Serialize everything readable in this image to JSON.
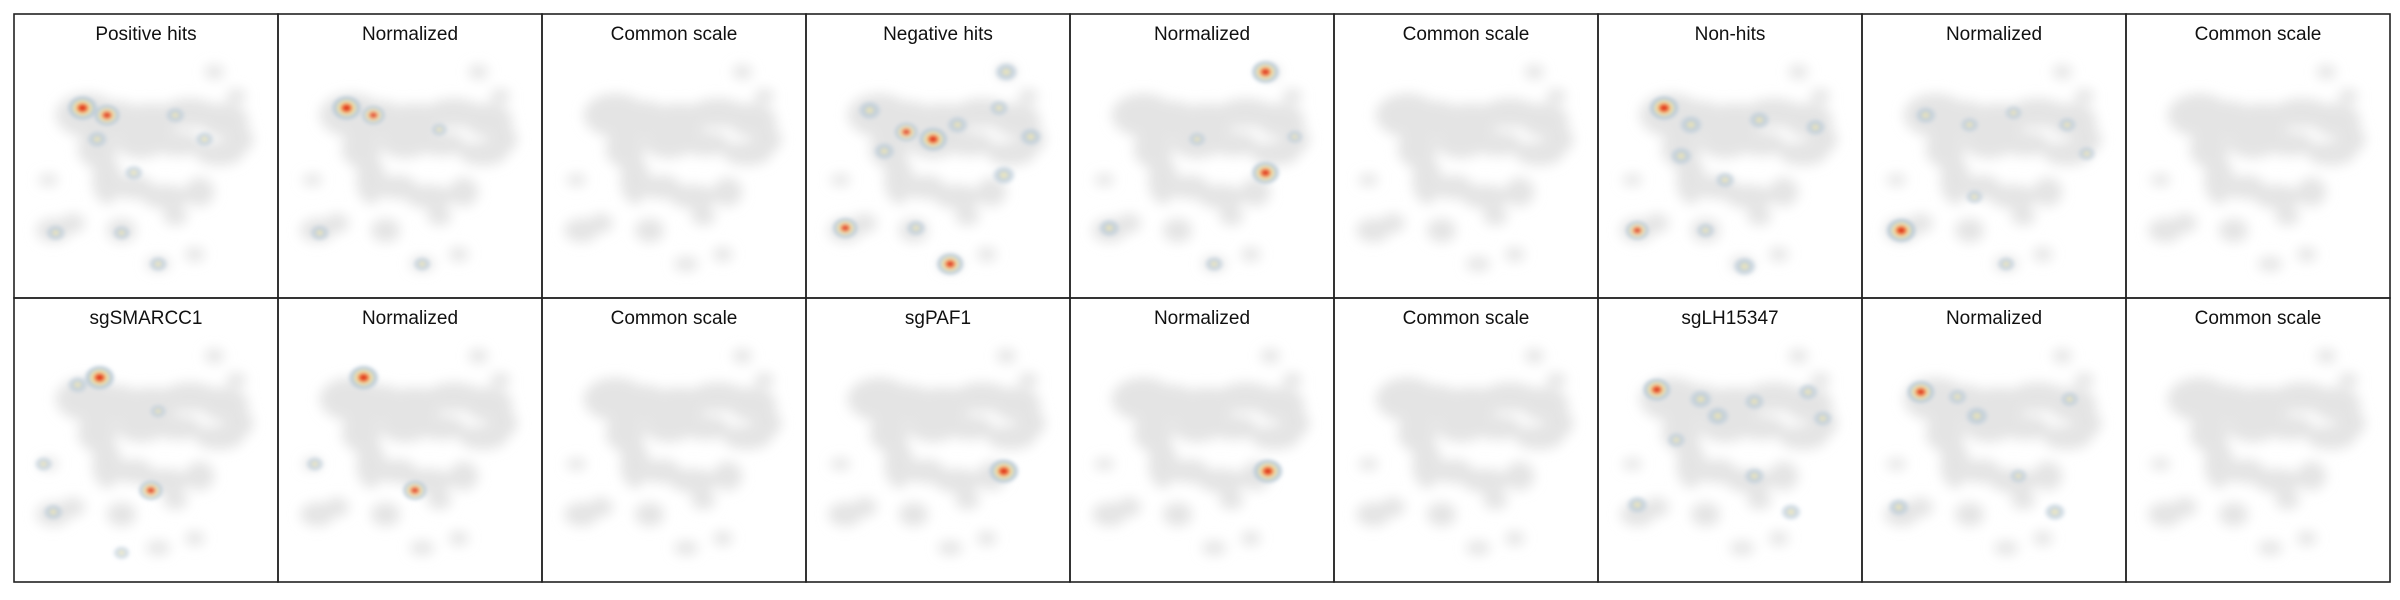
{
  "chart_data": {
    "type": "heatmap",
    "layout": {
      "rows": 2,
      "columns": 9
    },
    "colors": {
      "background_map": "#e4e4e4",
      "low": "#b9cad8",
      "mid": "#f2e6a8",
      "high": "#d41a14",
      "panel_border": "#222222"
    },
    "panels": [
      {
        "title": "Positive hits",
        "hotspots": [
          {
            "x": 0.24,
            "y": 0.25,
            "w": 1.0
          },
          {
            "x": 0.34,
            "y": 0.28,
            "w": 0.8
          },
          {
            "x": 0.3,
            "y": 0.38,
            "w": 0.45
          },
          {
            "x": 0.62,
            "y": 0.28,
            "w": 0.4
          },
          {
            "x": 0.74,
            "y": 0.38,
            "w": 0.35
          },
          {
            "x": 0.45,
            "y": 0.52,
            "w": 0.35
          },
          {
            "x": 0.13,
            "y": 0.77,
            "w": 0.4
          },
          {
            "x": 0.4,
            "y": 0.77,
            "w": 0.3
          },
          {
            "x": 0.55,
            "y": 0.9,
            "w": 0.35
          }
        ]
      },
      {
        "title": "Normalized",
        "hotspots": [
          {
            "x": 0.24,
            "y": 0.25,
            "w": 1.0
          },
          {
            "x": 0.35,
            "y": 0.28,
            "w": 0.65
          },
          {
            "x": 0.62,
            "y": 0.34,
            "w": 0.25
          },
          {
            "x": 0.13,
            "y": 0.77,
            "w": 0.4
          },
          {
            "x": 0.55,
            "y": 0.9,
            "w": 0.3
          }
        ]
      },
      {
        "title": "Common scale",
        "hotspots": []
      },
      {
        "title": "Negative hits",
        "hotspots": [
          {
            "x": 0.22,
            "y": 0.26,
            "w": 0.6
          },
          {
            "x": 0.48,
            "y": 0.38,
            "w": 0.95
          },
          {
            "x": 0.37,
            "y": 0.35,
            "w": 0.65
          },
          {
            "x": 0.58,
            "y": 0.32,
            "w": 0.5
          },
          {
            "x": 0.75,
            "y": 0.25,
            "w": 0.4
          },
          {
            "x": 0.78,
            "y": 0.1,
            "w": 0.6
          },
          {
            "x": 0.88,
            "y": 0.37,
            "w": 0.55
          },
          {
            "x": 0.77,
            "y": 0.53,
            "w": 0.6
          },
          {
            "x": 0.12,
            "y": 0.75,
            "w": 0.75
          },
          {
            "x": 0.41,
            "y": 0.75,
            "w": 0.4
          },
          {
            "x": 0.55,
            "y": 0.9,
            "w": 0.85
          },
          {
            "x": 0.28,
            "y": 0.43,
            "w": 0.5
          }
        ]
      },
      {
        "title": "Normalized",
        "hotspots": [
          {
            "x": 0.76,
            "y": 0.1,
            "w": 0.9
          },
          {
            "x": 0.76,
            "y": 0.52,
            "w": 0.9
          },
          {
            "x": 0.12,
            "y": 0.75,
            "w": 0.5
          },
          {
            "x": 0.48,
            "y": 0.38,
            "w": 0.3
          },
          {
            "x": 0.88,
            "y": 0.37,
            "w": 0.25
          },
          {
            "x": 0.55,
            "y": 0.9,
            "w": 0.35
          }
        ]
      },
      {
        "title": "Common scale",
        "hotspots": []
      },
      {
        "title": "Non-hits",
        "hotspots": [
          {
            "x": 0.23,
            "y": 0.25,
            "w": 1.0
          },
          {
            "x": 0.34,
            "y": 0.32,
            "w": 0.6
          },
          {
            "x": 0.3,
            "y": 0.45,
            "w": 0.55
          },
          {
            "x": 0.62,
            "y": 0.3,
            "w": 0.5
          },
          {
            "x": 0.85,
            "y": 0.33,
            "w": 0.45
          },
          {
            "x": 0.48,
            "y": 0.55,
            "w": 0.4
          },
          {
            "x": 0.12,
            "y": 0.76,
            "w": 0.65
          },
          {
            "x": 0.56,
            "y": 0.91,
            "w": 0.6
          },
          {
            "x": 0.4,
            "y": 0.76,
            "w": 0.35
          }
        ]
      },
      {
        "title": "Normalized",
        "hotspots": [
          {
            "x": 0.22,
            "y": 0.28,
            "w": 0.5
          },
          {
            "x": 0.4,
            "y": 0.32,
            "w": 0.35
          },
          {
            "x": 0.58,
            "y": 0.27,
            "w": 0.3
          },
          {
            "x": 0.8,
            "y": 0.32,
            "w": 0.35
          },
          {
            "x": 0.12,
            "y": 0.76,
            "w": 1.0
          },
          {
            "x": 0.42,
            "y": 0.62,
            "w": 0.3
          },
          {
            "x": 0.55,
            "y": 0.9,
            "w": 0.3
          },
          {
            "x": 0.88,
            "y": 0.44,
            "w": 0.3
          }
        ]
      },
      {
        "title": "Common scale",
        "hotspots": []
      },
      {
        "title": "sgSMARCC1",
        "hotspots": [
          {
            "x": 0.31,
            "y": 0.19,
            "w": 1.0
          },
          {
            "x": 0.22,
            "y": 0.22,
            "w": 0.45
          },
          {
            "x": 0.52,
            "y": 0.66,
            "w": 0.7
          },
          {
            "x": 0.12,
            "y": 0.75,
            "w": 0.4
          },
          {
            "x": 0.08,
            "y": 0.55,
            "w": 0.3
          },
          {
            "x": 0.4,
            "y": 0.92,
            "w": 0.25
          },
          {
            "x": 0.55,
            "y": 0.33,
            "w": 0.25
          }
        ]
      },
      {
        "title": "Normalized",
        "hotspots": [
          {
            "x": 0.31,
            "y": 0.19,
            "w": 1.0
          },
          {
            "x": 0.52,
            "y": 0.66,
            "w": 0.7
          },
          {
            "x": 0.11,
            "y": 0.55,
            "w": 0.3
          }
        ]
      },
      {
        "title": "Common scale",
        "hotspots": []
      },
      {
        "title": "sgPAF1",
        "hotspots": [
          {
            "x": 0.77,
            "y": 0.58,
            "w": 1.0
          }
        ]
      },
      {
        "title": "Normalized",
        "hotspots": [
          {
            "x": 0.77,
            "y": 0.58,
            "w": 1.0
          }
        ]
      },
      {
        "title": "Common scale",
        "hotspots": []
      },
      {
        "title": "sgLH15347",
        "hotspots": [
          {
            "x": 0.2,
            "y": 0.24,
            "w": 0.9
          },
          {
            "x": 0.38,
            "y": 0.28,
            "w": 0.6
          },
          {
            "x": 0.45,
            "y": 0.35,
            "w": 0.6
          },
          {
            "x": 0.6,
            "y": 0.29,
            "w": 0.45
          },
          {
            "x": 0.82,
            "y": 0.25,
            "w": 0.45
          },
          {
            "x": 0.88,
            "y": 0.36,
            "w": 0.4
          },
          {
            "x": 0.28,
            "y": 0.45,
            "w": 0.35
          },
          {
            "x": 0.6,
            "y": 0.6,
            "w": 0.45
          },
          {
            "x": 0.12,
            "y": 0.72,
            "w": 0.5
          },
          {
            "x": 0.75,
            "y": 0.75,
            "w": 0.45
          }
        ]
      },
      {
        "title": "Normalized",
        "hotspots": [
          {
            "x": 0.2,
            "y": 0.25,
            "w": 0.9
          },
          {
            "x": 0.43,
            "y": 0.35,
            "w": 0.6
          },
          {
            "x": 0.35,
            "y": 0.27,
            "w": 0.4
          },
          {
            "x": 0.81,
            "y": 0.28,
            "w": 0.35
          },
          {
            "x": 0.6,
            "y": 0.6,
            "w": 0.3
          },
          {
            "x": 0.11,
            "y": 0.73,
            "w": 0.5
          },
          {
            "x": 0.75,
            "y": 0.75,
            "w": 0.5
          }
        ]
      },
      {
        "title": "Common scale",
        "hotspots": []
      }
    ]
  }
}
